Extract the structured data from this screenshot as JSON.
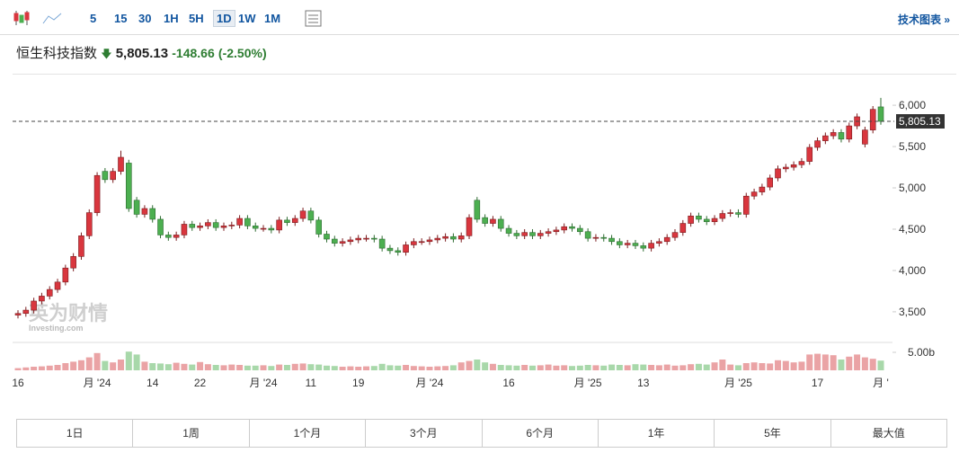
{
  "toolbar": {
    "intervals": [
      "5",
      "15",
      "30",
      "1H",
      "5H",
      "1D",
      "1W",
      "1M"
    ],
    "tech_link": "技术图表 »"
  },
  "header": {
    "name": "恒生科技指数",
    "price": "5,805.13",
    "change": "-148.66",
    "change_pct": "(-2.50%)"
  },
  "watermark": {
    "brand": "英为财情",
    "site": "Investing.com"
  },
  "ranges": [
    "1日",
    "1周",
    "1个月",
    "3个月",
    "6个月",
    "1年",
    "5年",
    "最大值"
  ],
  "chart_data": {
    "type": "candlestick",
    "up_color": "#d9363e",
    "down_color": "#4caf50",
    "categories": [
      "16",
      null,
      null,
      null,
      null,
      null,
      null,
      null,
      null,
      null,
      "月 '24",
      null,
      null,
      null,
      null,
      null,
      null,
      "14",
      null,
      null,
      null,
      null,
      null,
      "22",
      null,
      null,
      null,
      null,
      null,
      null,
      null,
      "月 '24",
      null,
      null,
      null,
      null,
      null,
      "11",
      null,
      null,
      null,
      null,
      null,
      "19",
      null,
      null,
      null,
      null,
      null,
      null,
      null,
      null,
      "月 '24",
      null,
      null,
      null,
      null,
      null,
      null,
      null,
      null,
      null,
      "16",
      null,
      null,
      null,
      null,
      null,
      null,
      null,
      null,
      null,
      "月 '25",
      null,
      null,
      null,
      null,
      null,
      null,
      "13",
      null,
      null,
      null,
      null,
      null,
      null,
      null,
      null,
      null,
      null,
      null,
      "月 '25",
      null,
      null,
      null,
      null,
      null,
      null,
      null,
      null,
      null,
      "17",
      null,
      null,
      null,
      null,
      null,
      null,
      null,
      "月 '"
    ],
    "open": [
      3460,
      3480,
      3520,
      3630,
      3690,
      3770,
      3860,
      4030,
      4170,
      4420,
      4700,
      5200,
      5100,
      5200,
      5300,
      4850,
      4680,
      4750,
      4620,
      4430,
      4400,
      4430,
      4560,
      4520,
      4540,
      4580,
      4520,
      4540,
      4550,
      4630,
      4540,
      4510,
      4510,
      4490,
      4610,
      4580,
      4630,
      4720,
      4610,
      4440,
      4380,
      4330,
      4350,
      4370,
      4390,
      4390,
      4380,
      4270,
      4240,
      4220,
      4310,
      4350,
      4350,
      4370,
      4390,
      4410,
      4380,
      4420,
      4850,
      4640,
      4570,
      4620,
      4510,
      4450,
      4420,
      4460,
      4420,
      4450,
      4470,
      4490,
      4530,
      4510,
      4470,
      4390,
      4400,
      4390,
      4350,
      4310,
      4330,
      4300,
      4270,
      4330,
      4350,
      4400,
      4460,
      4570,
      4660,
      4620,
      4590,
      4630,
      4690,
      4700,
      4680,
      4900,
      4950,
      5010,
      5120,
      5230,
      5250,
      5280,
      5320,
      5490,
      5570,
      5630,
      5670,
      5590,
      5750,
      5530,
      5700,
      5980
    ],
    "high": [
      3520,
      3560,
      3670,
      3730,
      3810,
      3900,
      4070,
      4210,
      4460,
      4740,
      5190,
      5240,
      5240,
      5450,
      5340,
      4890,
      4790,
      4790,
      4660,
      4470,
      4470,
      4600,
      4600,
      4580,
      4620,
      4620,
      4580,
      4590,
      4670,
      4670,
      4580,
      4550,
      4550,
      4650,
      4650,
      4670,
      4760,
      4760,
      4650,
      4480,
      4420,
      4390,
      4410,
      4430,
      4430,
      4430,
      4420,
      4310,
      4280,
      4350,
      4390,
      4390,
      4410,
      4430,
      4450,
      4450,
      4460,
      4680,
      4890,
      4680,
      4660,
      4660,
      4550,
      4490,
      4500,
      4500,
      4490,
      4510,
      4530,
      4570,
      4570,
      4550,
      4510,
      4440,
      4440,
      4430,
      4390,
      4370,
      4370,
      4340,
      4370,
      4390,
      4440,
      4500,
      4610,
      4700,
      4700,
      4660,
      4670,
      4730,
      4740,
      4740,
      4940,
      4990,
      5050,
      5160,
      5270,
      5290,
      5320,
      5360,
      5530,
      5610,
      5670,
      5710,
      5710,
      5790,
      5900,
      5740,
      5990,
      6090
    ],
    "low": [
      3420,
      3440,
      3480,
      3590,
      3650,
      3730,
      3820,
      3990,
      4130,
      4380,
      4660,
      5060,
      5060,
      5160,
      4710,
      4640,
      4640,
      4580,
      4390,
      4360,
      4360,
      4390,
      4480,
      4480,
      4500,
      4480,
      4480,
      4500,
      4510,
      4500,
      4470,
      4470,
      4450,
      4450,
      4540,
      4540,
      4590,
      4570,
      4400,
      4340,
      4290,
      4290,
      4310,
      4330,
      4350,
      4340,
      4230,
      4200,
      4180,
      4180,
      4270,
      4310,
      4310,
      4330,
      4350,
      4340,
      4340,
      4380,
      4580,
      4530,
      4530,
      4470,
      4410,
      4380,
      4380,
      4380,
      4380,
      4410,
      4430,
      4450,
      4470,
      4430,
      4350,
      4350,
      4350,
      4310,
      4270,
      4270,
      4260,
      4230,
      4230,
      4290,
      4310,
      4360,
      4420,
      4530,
      4580,
      4550,
      4550,
      4590,
      4650,
      4640,
      4640,
      4860,
      4910,
      4970,
      5080,
      5190,
      5210,
      5240,
      5280,
      5450,
      5530,
      5590,
      5550,
      5550,
      5710,
      5490,
      5660,
      5765
    ],
    "close": [
      3480,
      3520,
      3630,
      3690,
      3770,
      3860,
      4030,
      4170,
      4420,
      4700,
      5150,
      5100,
      5200,
      5370,
      4750,
      4680,
      4750,
      4620,
      4430,
      4400,
      4430,
      4560,
      4520,
      4540,
      4580,
      4520,
      4540,
      4550,
      4630,
      4540,
      4510,
      4510,
      4490,
      4610,
      4580,
      4630,
      4720,
      4610,
      4440,
      4380,
      4330,
      4350,
      4370,
      4390,
      4390,
      4380,
      4270,
      4240,
      4220,
      4310,
      4350,
      4350,
      4370,
      4390,
      4410,
      4380,
      4420,
      4640,
      4620,
      4570,
      4620,
      4510,
      4450,
      4420,
      4460,
      4420,
      4450,
      4470,
      4490,
      4530,
      4510,
      4470,
      4390,
      4400,
      4390,
      4350,
      4310,
      4330,
      4300,
      4270,
      4330,
      4350,
      4400,
      4460,
      4570,
      4660,
      4620,
      4590,
      4630,
      4690,
      4700,
      4680,
      4900,
      4950,
      5010,
      5120,
      5230,
      5250,
      5280,
      5320,
      5490,
      5570,
      5630,
      5670,
      5590,
      5750,
      5860,
      5700,
      5950,
      5805.13
    ],
    "ylim": [
      3140,
      6360
    ],
    "yticks": [
      {
        "value": 3500,
        "label": "3,500"
      },
      {
        "value": 4000,
        "label": "4,000"
      },
      {
        "value": 4500,
        "label": "4,500"
      },
      {
        "value": 5000,
        "label": "5,000"
      },
      {
        "value": 5500,
        "label": "5,500"
      },
      {
        "value": 6000,
        "label": "6,000"
      }
    ],
    "volume": {
      "values": [
        0.6,
        0.8,
        1.0,
        1.1,
        1.3,
        1.5,
        2.0,
        2.4,
        2.8,
        3.6,
        4.8,
        2.6,
        2.2,
        3.0,
        5.2,
        4.4,
        2.4,
        2.0,
        1.9,
        1.7,
        2.1,
        1.8,
        1.6,
        2.3,
        1.7,
        1.5,
        1.4,
        1.6,
        1.5,
        1.3,
        1.3,
        1.4,
        1.2,
        1.6,
        1.5,
        1.8,
        1.9,
        1.7,
        1.6,
        1.3,
        1.2,
        1.0,
        1.1,
        1.0,
        1.1,
        1.2,
        1.8,
        1.4,
        1.3,
        1.5,
        1.2,
        1.1,
        1.0,
        1.1,
        1.2,
        1.4,
        2.2,
        2.6,
        3.0,
        2.2,
        1.8,
        1.5,
        1.4,
        1.3,
        1.5,
        1.3,
        1.4,
        1.6,
        1.3,
        1.4,
        1.2,
        1.3,
        1.5,
        1.4,
        1.3,
        1.6,
        1.5,
        1.4,
        1.7,
        1.6,
        1.5,
        1.4,
        1.6,
        1.3,
        1.4,
        1.7,
        1.8,
        1.6,
        2.2,
        3.0,
        1.6,
        1.4,
        2.0,
        2.2,
        2.0,
        1.9,
        2.8,
        2.6,
        2.2,
        2.4,
        4.4,
        4.6,
        4.4,
        4.2,
        3.0,
        3.8,
        4.4,
        3.6,
        3.2,
        2.7
      ],
      "ylim": [
        0,
        7.75
      ],
      "yticks": [
        {
          "value": 5,
          "label": "5.00b"
        }
      ],
      "up_color": "#eaa3a5",
      "down_color": "#a8d8aa"
    }
  }
}
